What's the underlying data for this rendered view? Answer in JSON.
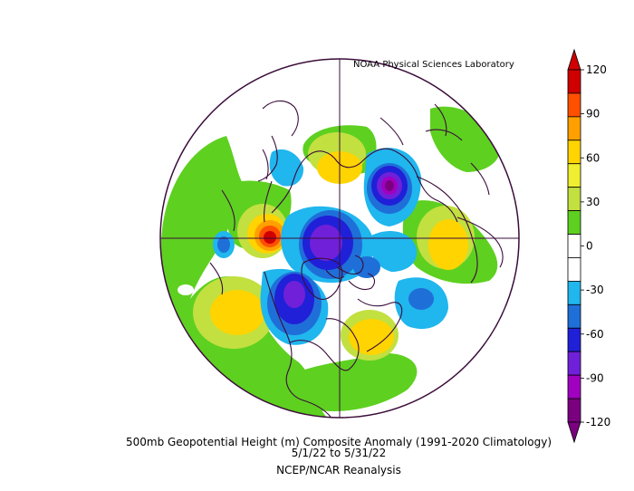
{
  "source_credit": "NOAA Physical Sciences Laboratory",
  "title": "500mb Geopotential Height (m) Composite Anomaly (1991-2020 Climatology)",
  "date_range": "5/1/22  to 5/31/22",
  "dataset": "NCEP/NCAR Reanalysis",
  "colorbar": {
    "ticks": [
      "120",
      "90",
      "60",
      "30",
      "0",
      "-30",
      "-60",
      "-90",
      "-120"
    ],
    "colors": [
      "#d00000",
      "#ff5000",
      "#ffa000",
      "#ffd400",
      "#f0ee30",
      "#c2e040",
      "#5ed020",
      "#ffffff",
      "#ffffff",
      "#20b6ee",
      "#1f6fd8",
      "#2020d8",
      "#7020d8",
      "#a000c0",
      "#7a0080"
    ]
  },
  "anomaly_centers": [
    {
      "region": "Western Europe / Eastern Atlantic",
      "sign": "positive",
      "approx_value_m": 120
    },
    {
      "region": "Arctic Ocean near Svalbard",
      "sign": "negative",
      "approx_value_m": -80
    },
    {
      "region": "Eastern Siberia",
      "sign": "negative",
      "approx_value_m": -110
    },
    {
      "region": "Canadian Arctic / Alaska",
      "sign": "negative",
      "approx_value_m": -80
    },
    {
      "region": "Siberia / Central Asia",
      "sign": "positive",
      "approx_value_m": 60
    },
    {
      "region": "Northwest Pacific",
      "sign": "positive",
      "approx_value_m": 60
    },
    {
      "region": "Eastern North America",
      "sign": "positive",
      "approx_value_m": 60
    }
  ]
}
